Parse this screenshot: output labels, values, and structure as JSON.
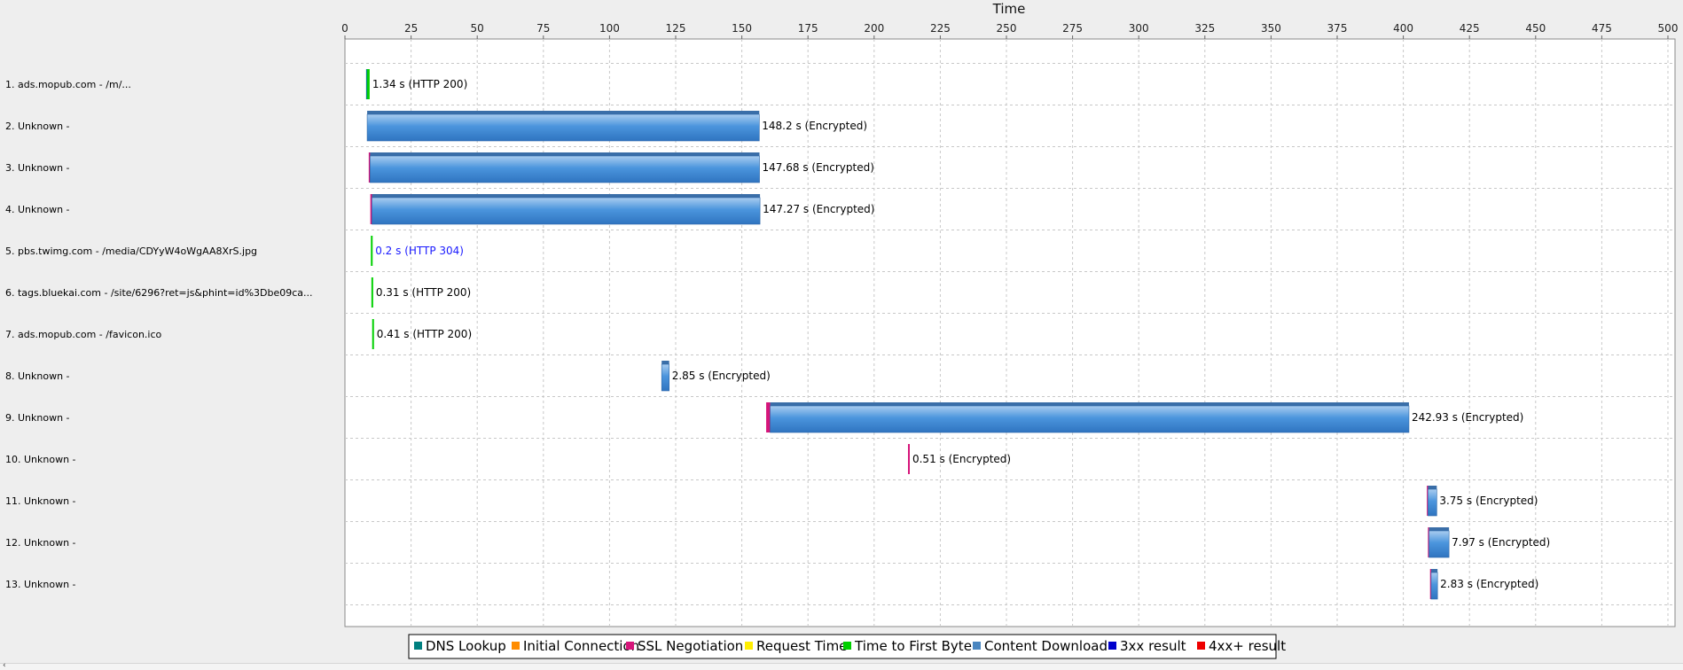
{
  "chart_data": {
    "type": "waterfall",
    "xlabel": "Time",
    "xlim": [
      0,
      500
    ],
    "x_ticks": [
      0,
      25,
      50,
      75,
      100,
      125,
      150,
      175,
      200,
      225,
      250,
      275,
      300,
      325,
      350,
      375,
      400,
      425,
      450,
      475,
      500
    ],
    "grid": true,
    "legend_position": "bottom",
    "legend": [
      {
        "key": "dns",
        "label": "DNS Lookup",
        "color": "#008080"
      },
      {
        "key": "connect",
        "label": "Initial Connection",
        "color": "#ff8c00"
      },
      {
        "key": "ssl",
        "label": "SSL Negotiation",
        "color": "#d6157a"
      },
      {
        "key": "request",
        "label": "Request Time",
        "color": "#ffee00"
      },
      {
        "key": "ttfb",
        "label": "Time to First Byte",
        "color": "#00d000"
      },
      {
        "key": "download",
        "label": "Content Download",
        "color": "#4a86c0"
      },
      {
        "key": "3xx",
        "label": "3xx result",
        "color": "#0000cc"
      },
      {
        "key": "4xx",
        "label": "4xx+ result",
        "color": "#ee0000"
      }
    ],
    "rows": [
      {
        "label": "1. ads.mopub.com - /m/...",
        "start": 8,
        "end": 9.34,
        "value_label": "1.34 s (HTTP 200)",
        "status": "200",
        "segments": [
          {
            "phase": "dns",
            "start": 8,
            "end": 8.4
          },
          {
            "phase": "ttfb",
            "start": 8.4,
            "end": 9.34
          }
        ]
      },
      {
        "label": "2. Unknown -",
        "start": 8.4,
        "end": 156.6,
        "value_label": "148.2 s (Encrypted)",
        "status": "encrypted",
        "segments": [
          {
            "phase": "download",
            "start": 8.4,
            "end": 156.6
          }
        ]
      },
      {
        "label": "3. Unknown -",
        "start": 9.0,
        "end": 156.68,
        "value_label": "147.68 s (Encrypted)",
        "status": "encrypted",
        "segments": [
          {
            "phase": "ssl",
            "start": 9.0,
            "end": 9.5
          },
          {
            "phase": "download",
            "start": 9.5,
            "end": 156.68
          }
        ]
      },
      {
        "label": "4. Unknown -",
        "start": 9.6,
        "end": 156.87,
        "value_label": "147.27 s (Encrypted)",
        "status": "encrypted",
        "segments": [
          {
            "phase": "ssl",
            "start": 9.6,
            "end": 10.2
          },
          {
            "phase": "download",
            "start": 10.2,
            "end": 156.87
          }
        ]
      },
      {
        "label": "5. pbs.twimg.com - /media/CDYyW4oWgAA8XrS.jpg",
        "start": 9.8,
        "end": 10.0,
        "value_label": "0.2 s (HTTP 304)",
        "status": "304",
        "segments": [
          {
            "phase": "ttfb",
            "start": 9.8,
            "end": 10.0
          }
        ]
      },
      {
        "label": "6. tags.bluekai.com - /site/6296?ret=js&phint=id%3Dbe09ca...",
        "start": 10.0,
        "end": 10.31,
        "value_label": "0.31 s (HTTP 200)",
        "status": "200",
        "segments": [
          {
            "phase": "ttfb",
            "start": 10.0,
            "end": 10.31
          }
        ]
      },
      {
        "label": "7. ads.mopub.com - /favicon.ico",
        "start": 10.3,
        "end": 10.71,
        "value_label": "0.41 s (HTTP 200)",
        "status": "200",
        "segments": [
          {
            "phase": "ttfb",
            "start": 10.3,
            "end": 10.71
          }
        ]
      },
      {
        "label": "8. Unknown -",
        "start": 119.7,
        "end": 122.55,
        "value_label": "2.85 s (Encrypted)",
        "status": "encrypted",
        "segments": [
          {
            "phase": "download",
            "start": 119.7,
            "end": 122.55
          }
        ]
      },
      {
        "label": "9. Unknown -",
        "start": 159.2,
        "end": 402.13,
        "value_label": "242.93 s (Encrypted)",
        "status": "encrypted",
        "segments": [
          {
            "phase": "ssl",
            "start": 159.2,
            "end": 160.7
          },
          {
            "phase": "download",
            "start": 160.7,
            "end": 402.13
          }
        ]
      },
      {
        "label": "10. Unknown -",
        "start": 212.8,
        "end": 213.31,
        "value_label": "0.51 s (Encrypted)",
        "status": "encrypted",
        "segments": [
          {
            "phase": "ssl",
            "start": 212.8,
            "end": 213.31
          }
        ]
      },
      {
        "label": "11. Unknown -",
        "start": 408.9,
        "end": 412.65,
        "value_label": "3.75 s (Encrypted)",
        "status": "encrypted",
        "segments": [
          {
            "phase": "ssl",
            "start": 408.9,
            "end": 409.3
          },
          {
            "phase": "download",
            "start": 409.3,
            "end": 412.65
          }
        ]
      },
      {
        "label": "12. Unknown -",
        "start": 409.3,
        "end": 417.27,
        "value_label": "7.97 s (Encrypted)",
        "status": "encrypted",
        "segments": [
          {
            "phase": "ssl",
            "start": 409.3,
            "end": 409.7
          },
          {
            "phase": "download",
            "start": 409.7,
            "end": 417.27
          }
        ]
      },
      {
        "label": "13. Unknown -",
        "start": 410.1,
        "end": 412.93,
        "value_label": "2.83 s (Encrypted)",
        "status": "encrypted",
        "segments": [
          {
            "phase": "ssl",
            "start": 410.1,
            "end": 410.5
          },
          {
            "phase": "download",
            "start": 410.5,
            "end": 412.93
          }
        ]
      }
    ]
  }
}
